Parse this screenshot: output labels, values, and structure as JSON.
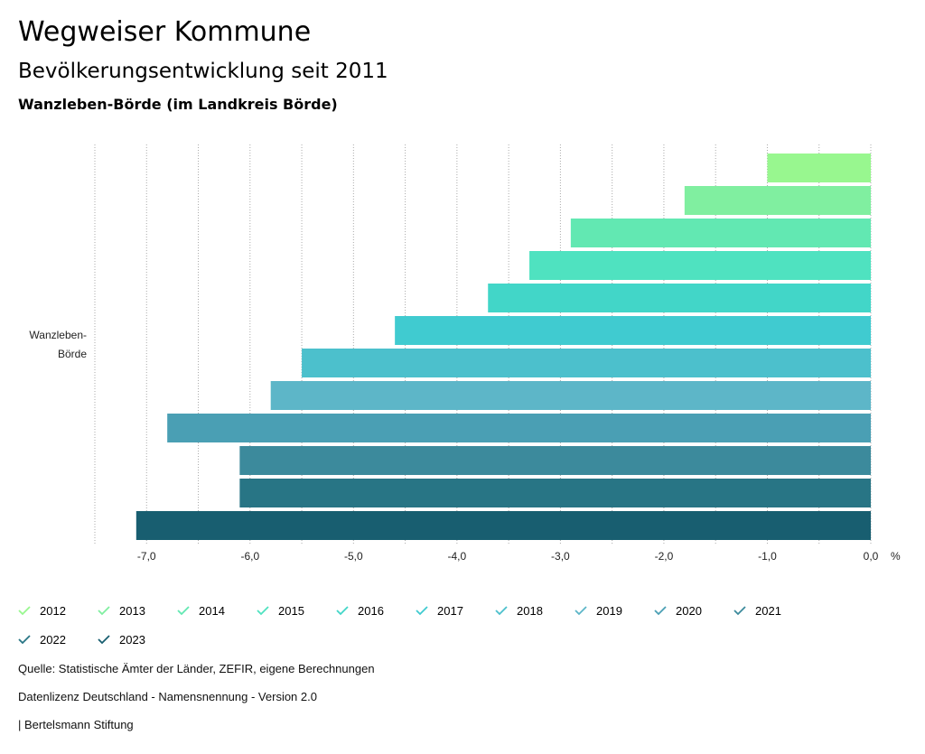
{
  "header": {
    "title": "Wegweiser Kommune",
    "subtitle": "Bevölkerungsentwicklung seit 2011",
    "region": "Wanzleben-Börde (im Landkreis Börde)"
  },
  "chart_data": {
    "type": "bar",
    "orientation": "horizontal",
    "categories": [
      "Wanzleben-Börde"
    ],
    "category_label_lines": [
      "Wanzleben-",
      "Börde"
    ],
    "series": [
      {
        "name": "2012",
        "value": -1.0,
        "color": "#98f78f"
      },
      {
        "name": "2013",
        "value": -1.8,
        "color": "#80efa0"
      },
      {
        "name": "2014",
        "value": -2.9,
        "color": "#62e8b2"
      },
      {
        "name": "2015",
        "value": -3.3,
        "color": "#4fe2c0"
      },
      {
        "name": "2016",
        "value": -3.7,
        "color": "#42d6c8"
      },
      {
        "name": "2017",
        "value": -4.6,
        "color": "#40cbd0"
      },
      {
        "name": "2018",
        "value": -5.5,
        "color": "#4cc0cc"
      },
      {
        "name": "2019",
        "value": -5.8,
        "color": "#5db6c8"
      },
      {
        "name": "2020",
        "value": -6.8,
        "color": "#4a9fb4"
      },
      {
        "name": "2021",
        "value": -6.1,
        "color": "#3c8a9c"
      },
      {
        "name": "2022",
        "value": -6.1,
        "color": "#287585"
      },
      {
        "name": "2023",
        "value": -7.1,
        "color": "#185e70"
      }
    ],
    "xlim": [
      -7.5,
      0
    ],
    "ticks": [
      -7,
      -6,
      -5,
      -4,
      -3,
      -2,
      -1,
      0
    ],
    "tick_labels": [
      "-7,0",
      "-6,0",
      "-5,0",
      "-4,0",
      "-3,0",
      "-2,0",
      "-1,0",
      "0,0"
    ],
    "unit": "%",
    "grid": true,
    "legend_position": "bottom"
  },
  "footer": {
    "source": "Quelle: Statistische Ämter der Länder, ZEFIR, eigene Berechnungen",
    "license": "Datenlizenz Deutschland - Namensnennung - Version 2.0",
    "brand": "| Bertelsmann Stiftung"
  }
}
